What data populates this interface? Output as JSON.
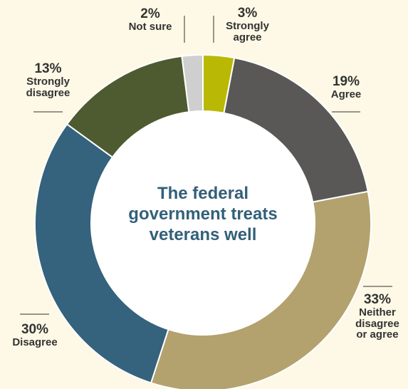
{
  "chart_data": {
    "type": "pie",
    "title": "The federal government treats veterans well",
    "slices": [
      {
        "label": "Strongly agree",
        "value": 3,
        "display": "3%",
        "color": "#b9b905"
      },
      {
        "label": "Agree",
        "value": 19,
        "display": "19%",
        "color": "#5a5757"
      },
      {
        "label": "Neither disagree or agree",
        "value": 33,
        "display": "33%",
        "color": "#b3a26e"
      },
      {
        "label": "Disagree",
        "value": 30,
        "display": "30%",
        "color": "#35627c"
      },
      {
        "label": "Strongly disagree",
        "value": 13,
        "display": "13%",
        "color": "#4e5a30"
      },
      {
        "label": "Not sure",
        "value": 2,
        "display": "2%",
        "color": "#cfcfcf"
      }
    ]
  },
  "labels": {
    "strongly_agree": {
      "pct": "3%",
      "lines": [
        "Strongly",
        "agree"
      ]
    },
    "agree": {
      "pct": "19%",
      "lines": [
        "Agree"
      ]
    },
    "neither": {
      "pct": "33%",
      "lines": [
        "Neither",
        "disagree",
        "or agree"
      ]
    },
    "disagree": {
      "pct": "30%",
      "lines": [
        "Disagree"
      ]
    },
    "strongly_disagree": {
      "pct": "13%",
      "lines": [
        "Strongly",
        "disagree"
      ]
    },
    "not_sure": {
      "pct": "2%",
      "lines": [
        "Not sure"
      ]
    }
  },
  "center_title_lines": [
    "The federal",
    "government treats",
    "veterans well"
  ]
}
